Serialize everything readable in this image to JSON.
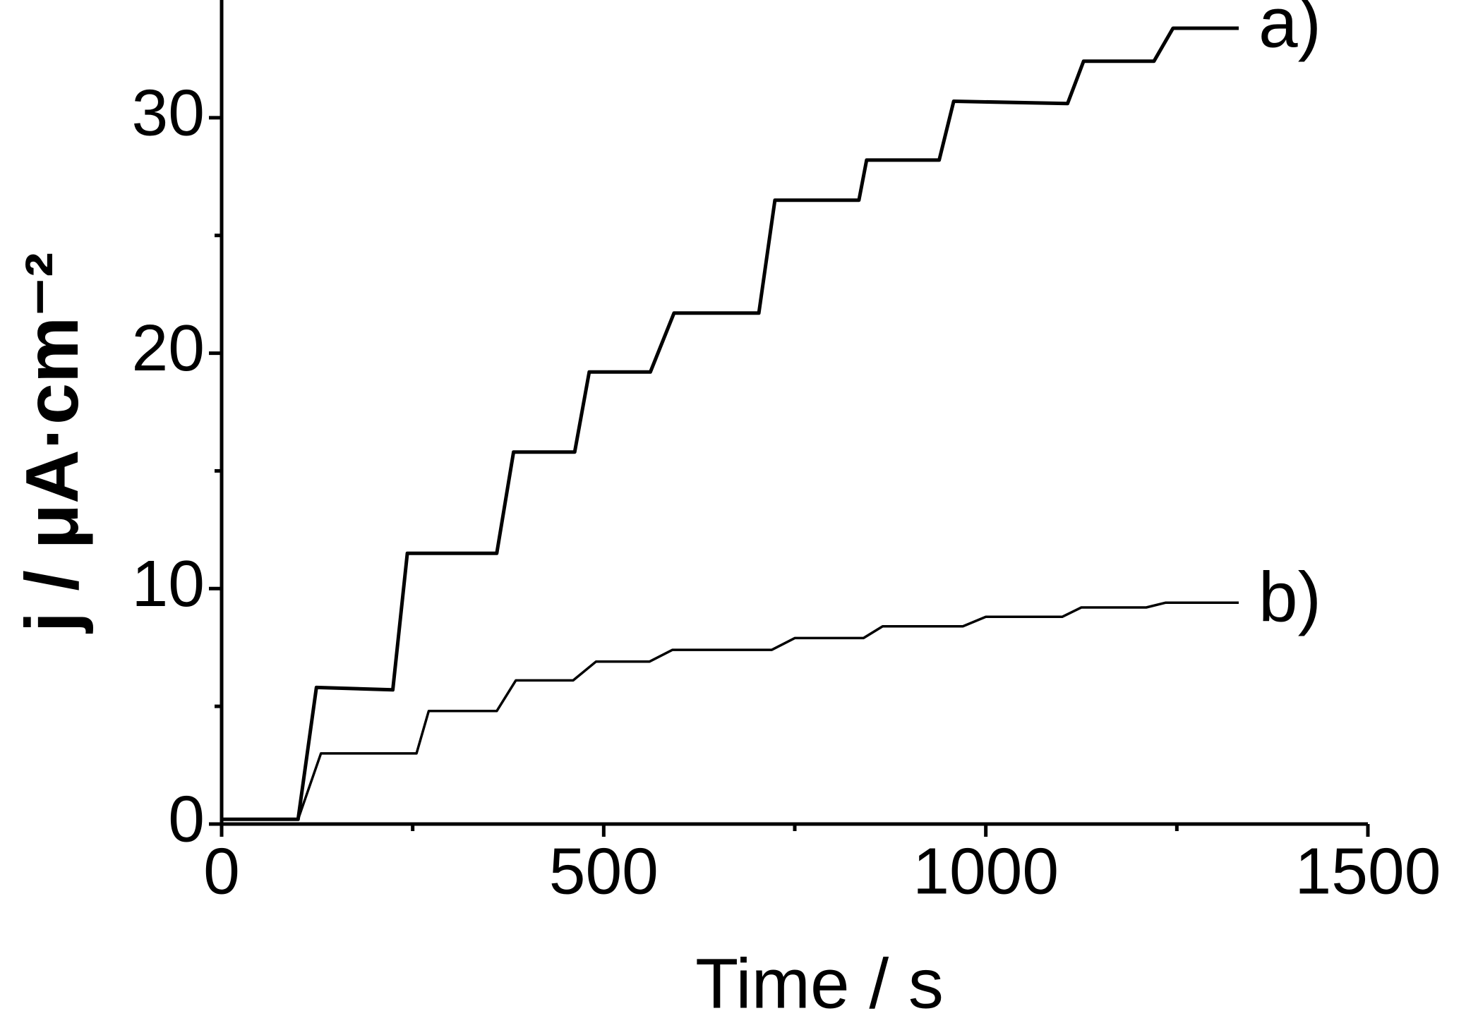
{
  "chart_data": {
    "type": "line",
    "x_label": "Time / s",
    "y_label": "j / μA·cm⁻²",
    "xlim": [
      0,
      1500
    ],
    "xticks": [
      0,
      500,
      1000,
      1500
    ],
    "xminor": [
      250,
      750,
      1250
    ],
    "ylim": [
      0,
      35
    ],
    "yticks": [
      0,
      10,
      20,
      30
    ],
    "yminor": [
      5,
      15,
      25
    ],
    "grid": false,
    "series": [
      {
        "name": "a)",
        "color": "#000000",
        "linewidth": 5,
        "x": [
          0,
          100,
          124,
          224,
          243,
          360,
          382,
          462,
          481,
          561,
          592,
          703,
          724,
          834,
          844,
          939,
          958,
          1107,
          1128,
          1220,
          1245,
          1331
        ],
        "values": [
          0.2,
          0.2,
          5.8,
          5.7,
          11.5,
          11.5,
          15.8,
          15.8,
          19.2,
          19.2,
          21.7,
          21.7,
          26.5,
          26.5,
          28.2,
          28.2,
          30.7,
          30.6,
          32.4,
          32.4,
          33.8,
          33.8
        ]
      },
      {
        "name": "b)",
        "color": "#000000",
        "linewidth": 3.5,
        "x": [
          0,
          100,
          130,
          255,
          271,
          360,
          385,
          460,
          490,
          560,
          590,
          720,
          750,
          840,
          865,
          970,
          1000,
          1100,
          1125,
          1210,
          1235,
          1331
        ],
        "values": [
          0.2,
          0.2,
          3.0,
          3.0,
          4.8,
          4.8,
          6.1,
          6.1,
          6.9,
          6.9,
          7.4,
          7.4,
          7.9,
          7.9,
          8.4,
          8.4,
          8.8,
          8.8,
          9.2,
          9.2,
          9.4,
          9.4
        ]
      }
    ]
  }
}
